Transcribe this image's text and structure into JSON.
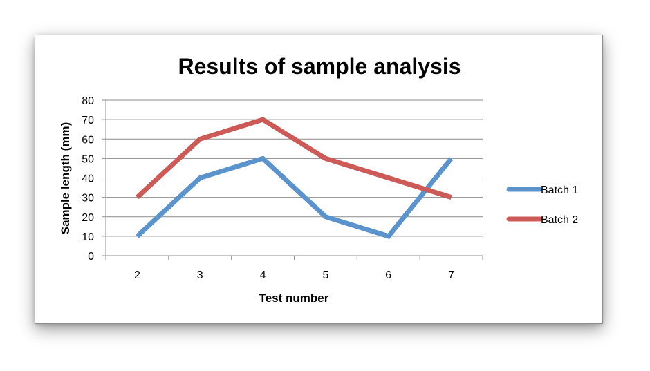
{
  "chart_data": {
    "type": "line",
    "title": "Results of sample analysis",
    "xlabel": "Test number",
    "ylabel": "Sample length (mm)",
    "categories": [
      "2",
      "3",
      "4",
      "5",
      "6",
      "7"
    ],
    "ylim": [
      0,
      80
    ],
    "yticks": [
      "0",
      "10",
      "20",
      "30",
      "40",
      "50",
      "60",
      "70",
      "80"
    ],
    "grid": true,
    "legend": "right",
    "series": [
      {
        "name": "Batch 1",
        "values": [
          10,
          40,
          50,
          20,
          10,
          50
        ],
        "color": "#5b93cd"
      },
      {
        "name": "Batch 2",
        "values": [
          30,
          60,
          70,
          50,
          40,
          30
        ],
        "color": "#cc5b58"
      }
    ]
  }
}
